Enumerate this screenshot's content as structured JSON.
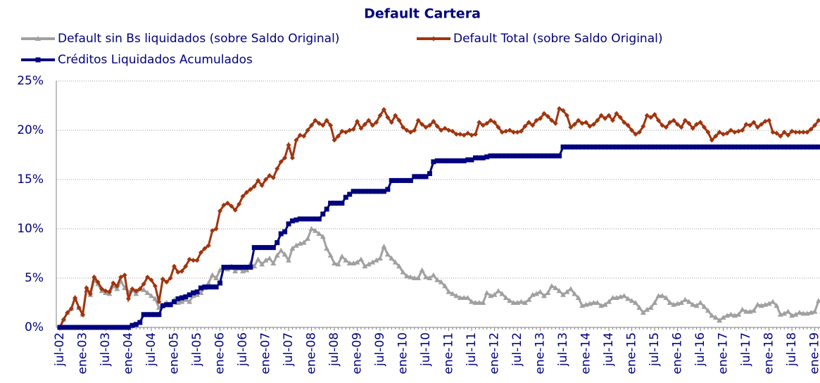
{
  "chart_data": {
    "type": "line",
    "title": "Default Cartera",
    "categories": [
      "jul-02",
      null,
      null,
      null,
      null,
      null,
      "ene-03",
      null,
      null,
      null,
      null,
      null,
      "jul-03",
      null,
      null,
      null,
      null,
      null,
      "ene-04",
      null,
      null,
      null,
      null,
      null,
      "jul-04",
      null,
      null,
      null,
      null,
      null,
      "ene-05",
      null,
      null,
      null,
      null,
      null,
      "jul-05",
      null,
      null,
      null,
      null,
      null,
      "ene-06",
      null,
      null,
      null,
      null,
      null,
      "jul-06",
      null,
      null,
      null,
      null,
      null,
      "ene-07",
      null,
      null,
      null,
      null,
      null,
      "jul-07",
      null,
      null,
      null,
      null,
      null,
      "ene-08",
      null,
      null,
      null,
      null,
      null,
      "jul-08",
      null,
      null,
      null,
      null,
      null,
      "ene-09",
      null,
      null,
      null,
      null,
      null,
      "jul-09",
      null,
      null,
      null,
      null,
      null,
      "ene-10",
      null,
      null,
      null,
      null,
      null,
      "jul-10",
      null,
      null,
      null,
      null,
      null,
      "ene-11",
      null,
      null,
      null,
      null,
      null,
      "jul-11",
      null,
      null,
      null,
      null,
      null,
      "ene-12",
      null,
      null,
      null,
      null,
      null,
      "jul-12",
      null,
      null,
      null,
      null,
      null,
      "ene-13",
      null,
      null,
      null,
      null,
      null,
      "jul-13",
      null,
      null,
      null,
      null,
      null,
      "ene-14",
      null,
      null,
      null,
      null,
      null,
      "jul-14",
      null,
      null,
      null,
      null,
      null,
      "ene-15",
      null,
      null,
      null,
      null,
      null,
      "jul-15",
      null,
      null,
      null,
      null,
      null,
      "ene-16",
      null,
      null,
      null,
      null,
      null,
      "jul-16",
      null,
      null,
      null,
      null,
      null,
      "ene-17",
      null,
      null,
      null,
      null,
      null,
      "jul-17",
      null,
      null,
      null,
      null,
      null,
      "ene-18",
      null,
      null,
      null,
      null,
      null,
      "jul-18",
      null,
      null,
      null,
      null,
      null,
      "ene-19",
      null
    ],
    "series": [
      {
        "name": "Default sin Bs liquidados (sobre Saldo Original)",
        "color": "#a0a0a0",
        "marker": "triangle",
        "values": [
          0,
          0.8,
          1.5,
          1.9,
          3.0,
          2.0,
          1.3,
          3.8,
          3.3,
          4.8,
          4.4,
          3.7,
          3.5,
          3.4,
          4.2,
          3.9,
          4.7,
          4.0,
          3.6,
          3.8,
          3.4,
          3.9,
          3.8,
          3.5,
          3.2,
          2.9,
          2.0,
          2.2,
          2.5,
          2.4,
          2.8,
          2.5,
          2.6,
          2.8,
          2.6,
          3.2,
          3.3,
          3.5,
          4.0,
          4.5,
          5.3,
          5.0,
          5.8,
          6.0,
          5.9,
          6.2,
          5.7,
          6.0,
          5.7,
          5.8,
          6.5,
          6.2,
          6.9,
          6.4,
          6.8,
          7.0,
          6.5,
          7.3,
          7.8,
          7.4,
          6.8,
          8.0,
          8.3,
          8.5,
          8.6,
          9.0,
          10.0,
          9.8,
          9.5,
          9.2,
          8.0,
          7.3,
          6.5,
          6.4,
          7.2,
          6.8,
          6.5,
          6.5,
          6.6,
          6.9,
          6.2,
          6.4,
          6.6,
          6.8,
          7.0,
          8.2,
          7.4,
          7.0,
          6.6,
          6.2,
          5.6,
          5.2,
          5.1,
          5.0,
          5.0,
          5.8,
          5.1,
          5.0,
          5.3,
          4.8,
          4.6,
          4.2,
          3.6,
          3.4,
          3.2,
          3.0,
          3.0,
          3.0,
          2.6,
          2.5,
          2.5,
          2.5,
          3.5,
          3.2,
          3.3,
          3.7,
          3.4,
          3.0,
          2.7,
          2.5,
          2.5,
          2.6,
          2.5,
          2.8,
          3.3,
          3.4,
          3.6,
          3.2,
          3.5,
          4.2,
          4.0,
          3.7,
          3.3,
          3.6,
          3.9,
          3.4,
          3.0,
          2.2,
          2.3,
          2.4,
          2.5,
          2.5,
          2.2,
          2.3,
          2.6,
          3.0,
          3.0,
          3.1,
          3.2,
          2.9,
          2.7,
          2.5,
          2.0,
          1.5,
          1.8,
          2.0,
          2.5,
          3.2,
          3.2,
          3.0,
          2.5,
          2.3,
          2.4,
          2.5,
          2.8,
          2.6,
          2.3,
          2.2,
          2.5,
          2.1,
          1.7,
          1.2,
          1.0,
          0.7,
          1.0,
          1.2,
          1.3,
          1.2,
          1.3,
          1.8,
          1.6,
          1.6,
          1.7,
          2.3,
          2.2,
          2.3,
          2.4,
          2.6,
          2.2,
          1.3,
          1.4,
          1.6,
          1.2,
          1.3,
          1.5,
          1.4,
          1.4,
          1.5,
          1.6,
          2.7
        ]
      },
      {
        "name": "Default Total (sobre Saldo Original)",
        "color": "#a0350f",
        "marker": "diamond",
        "values": [
          0,
          0.8,
          1.5,
          1.9,
          3.0,
          2.0,
          1.3,
          4.0,
          3.4,
          5.1,
          4.6,
          3.9,
          3.7,
          3.6,
          4.5,
          4.2,
          5.1,
          5.3,
          2.9,
          3.9,
          3.7,
          3.9,
          4.4,
          5.1,
          4.8,
          4.2,
          2.6,
          4.9,
          4.6,
          5.0,
          6.2,
          5.6,
          5.7,
          6.2,
          6.9,
          6.8,
          6.8,
          7.6,
          8.0,
          8.3,
          9.8,
          10.0,
          11.8,
          12.4,
          12.6,
          12.3,
          11.9,
          12.5,
          13.3,
          13.7,
          14.0,
          14.3,
          14.9,
          14.4,
          15.0,
          15.4,
          15.2,
          16.1,
          16.8,
          17.2,
          18.5,
          17.2,
          19.0,
          19.5,
          19.4,
          20.0,
          20.5,
          21.0,
          20.7,
          20.5,
          21.0,
          20.5,
          19.0,
          19.4,
          19.9,
          19.8,
          20.0,
          20.1,
          20.9,
          20.2,
          20.6,
          21.0,
          20.5,
          20.8,
          21.5,
          22.1,
          21.3,
          20.8,
          21.5,
          21.0,
          20.3,
          20.0,
          19.8,
          20.0,
          21.0,
          20.6,
          20.3,
          20.5,
          20.9,
          20.4,
          20.0,
          20.2,
          20.0,
          19.9,
          19.6,
          19.6,
          19.5,
          19.7,
          19.5,
          19.6,
          20.8,
          20.5,
          20.7,
          21.0,
          20.8,
          20.3,
          19.8,
          19.9,
          20.0,
          19.8,
          19.8,
          19.9,
          20.4,
          20.8,
          20.5,
          21.0,
          21.2,
          21.7,
          21.4,
          21.0,
          20.7,
          22.2,
          22.0,
          21.5,
          20.3,
          20.6,
          21.0,
          20.7,
          20.8,
          20.4,
          20.6,
          21.0,
          21.5,
          21.2,
          21.5,
          21.0,
          21.7,
          21.3,
          20.8,
          20.5,
          20.0,
          19.6,
          19.8,
          20.4,
          21.5,
          21.3,
          21.6,
          21.0,
          20.5,
          20.3,
          20.8,
          21.0,
          20.6,
          20.3,
          21.0,
          20.7,
          20.2,
          20.6,
          20.8,
          20.3,
          19.8,
          19.0,
          19.4,
          19.8,
          19.6,
          19.7,
          20.0,
          19.8,
          19.9,
          20.0,
          20.6,
          20.5,
          20.8,
          20.3,
          20.6,
          20.9,
          21.0,
          19.8,
          19.7,
          19.4,
          19.8,
          19.5,
          19.9,
          19.8,
          19.8,
          19.8,
          19.8,
          20.1,
          20.5,
          21.0
        ]
      },
      {
        "name": "Créditos Liquidados Acumulados",
        "color": "#000080",
        "marker": "square",
        "values": [
          0,
          0,
          0,
          0,
          0,
          0,
          0,
          0,
          0,
          0,
          0,
          0,
          0,
          0,
          0,
          0,
          0,
          0,
          0,
          0.2,
          0.3,
          0.5,
          1.3,
          1.3,
          1.3,
          1.3,
          1.3,
          2.2,
          2.3,
          2.3,
          2.6,
          2.9,
          3.0,
          3.1,
          3.3,
          3.5,
          3.6,
          4.0,
          4.1,
          4.1,
          4.1,
          4.1,
          4.5,
          6.1,
          6.1,
          6.1,
          6.1,
          6.1,
          6.1,
          6.1,
          6.1,
          8.1,
          8.1,
          8.1,
          8.1,
          8.1,
          8.1,
          8.6,
          9.5,
          9.7,
          10.5,
          10.8,
          10.9,
          11.0,
          11.0,
          11.0,
          11.0,
          11.0,
          11.0,
          11.5,
          12.0,
          12.6,
          12.6,
          12.6,
          12.6,
          13.2,
          13.5,
          13.8,
          13.8,
          13.8,
          13.8,
          13.8,
          13.8,
          13.8,
          13.8,
          13.8,
          14.0,
          14.9,
          14.9,
          14.9,
          14.9,
          14.9,
          14.9,
          15.3,
          15.3,
          15.3,
          15.3,
          15.6,
          16.8,
          16.9,
          16.9,
          16.9,
          16.9,
          16.9,
          16.9,
          16.9,
          16.9,
          17.0,
          17.0,
          17.2,
          17.2,
          17.2,
          17.3,
          17.4,
          17.4,
          17.4,
          17.4,
          17.4,
          17.4,
          17.4,
          17.4,
          17.4,
          17.4,
          17.4,
          17.4,
          17.4,
          17.4,
          17.4,
          17.4,
          17.4,
          17.4,
          17.4,
          18.3,
          18.3,
          18.3,
          18.3,
          18.3,
          18.3,
          18.3,
          18.3,
          18.3,
          18.3,
          18.3,
          18.3,
          18.3,
          18.3,
          18.3,
          18.3,
          18.3,
          18.3,
          18.3,
          18.3,
          18.3,
          18.3,
          18.3,
          18.3,
          18.3,
          18.3,
          18.3,
          18.3,
          18.3,
          18.3,
          18.3,
          18.3,
          18.3,
          18.3,
          18.3,
          18.3,
          18.3,
          18.3,
          18.3,
          18.3,
          18.3,
          18.3,
          18.3,
          18.3,
          18.3,
          18.3,
          18.3,
          18.3,
          18.3,
          18.3,
          18.3,
          18.3,
          18.3,
          18.3,
          18.3,
          18.3,
          18.3,
          18.3,
          18.3,
          18.3,
          18.3,
          18.3,
          18.3,
          18.3,
          18.3,
          18.3,
          18.3,
          18.3
        ]
      }
    ],
    "ylim": [
      0,
      25
    ],
    "yticks": [
      {
        "value": 0,
        "label": "0%"
      },
      {
        "value": 5,
        "label": "5%"
      },
      {
        "value": 10,
        "label": "10%"
      },
      {
        "value": 15,
        "label": "15%"
      },
      {
        "value": 20,
        "label": "20%"
      },
      {
        "value": 25,
        "label": "25%"
      }
    ],
    "grid": true,
    "legend": "top"
  }
}
